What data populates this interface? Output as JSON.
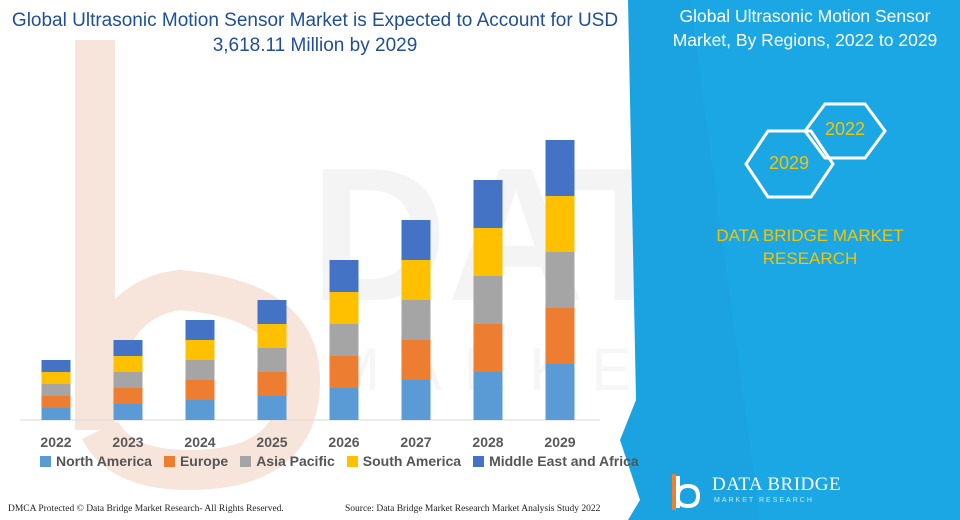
{
  "title": "Global Ultrasonic Motion Sensor Market is Expected to Account for USD 3,618.11 Million by 2029",
  "panel": {
    "title": "Global Ultrasonic Motion Sensor Market, By Regions, 2022 to 2029",
    "year_a": "2022",
    "year_b": "2029",
    "brand": "DATA BRIDGE MARKET RESEARCH"
  },
  "footer": {
    "left": "DMCA Protected © Data Bridge Market Research- All Rights Reserved.",
    "right": "Source: Data Bridge Market Research Market Analysis Study 2022"
  },
  "logo": {
    "name": "DATA BRIDGE",
    "tagline": "MARKET RESEARCH"
  },
  "colors": {
    "panel_blue": "#1aa3e0",
    "title_blue": "#1f4e9a",
    "brand_yellow": "#f5c400"
  },
  "chart_data": {
    "type": "bar",
    "stacked": true,
    "categories": [
      "2022",
      "2023",
      "2024",
      "2025",
      "2026",
      "2027",
      "2028",
      "2029"
    ],
    "series": [
      {
        "name": "North America",
        "color": "#5b9bd5",
        "values": [
          1.5,
          2.0,
          2.5,
          3.0,
          4.0,
          5.0,
          6.0,
          7.0
        ]
      },
      {
        "name": "Europe",
        "color": "#ed7d31",
        "values": [
          1.5,
          2.0,
          2.5,
          3.0,
          4.0,
          5.0,
          6.0,
          7.0
        ]
      },
      {
        "name": "Asia Pacific",
        "color": "#a5a5a5",
        "values": [
          1.5,
          2.0,
          2.5,
          3.0,
          4.0,
          5.0,
          6.0,
          7.0
        ]
      },
      {
        "name": "South America",
        "color": "#ffc000",
        "values": [
          1.5,
          2.0,
          2.5,
          3.0,
          4.0,
          5.0,
          6.0,
          7.0
        ]
      },
      {
        "name": "Middle East and Africa",
        "color": "#4472c4",
        "values": [
          1.5,
          2.0,
          2.5,
          3.0,
          4.0,
          5.0,
          6.0,
          7.0
        ]
      }
    ],
    "legend_position": "bottom",
    "grid": false
  }
}
